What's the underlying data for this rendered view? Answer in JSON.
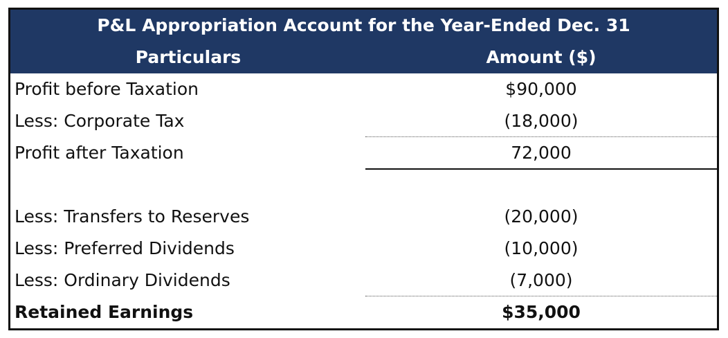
{
  "header": {
    "title": "P&L Appropriation Account for the Year-Ended Dec. 31",
    "columns": [
      "Particulars",
      "Amount ($)"
    ]
  },
  "rows": [
    [
      "Profit before Taxation",
      "$90,000"
    ],
    [
      "Less: Corporate Tax",
      "(18,000)"
    ],
    [
      "Profit after Taxation",
      "72,000"
    ],
    [
      "Less: Transfers to Reserves",
      "(20,000)"
    ],
    [
      "Less: Preferred Dividends",
      "(10,000)"
    ],
    [
      "Less: Ordinary Dividends",
      "(7,000)"
    ],
    [
      "Retained Earnings",
      "$35,000"
    ]
  ]
}
